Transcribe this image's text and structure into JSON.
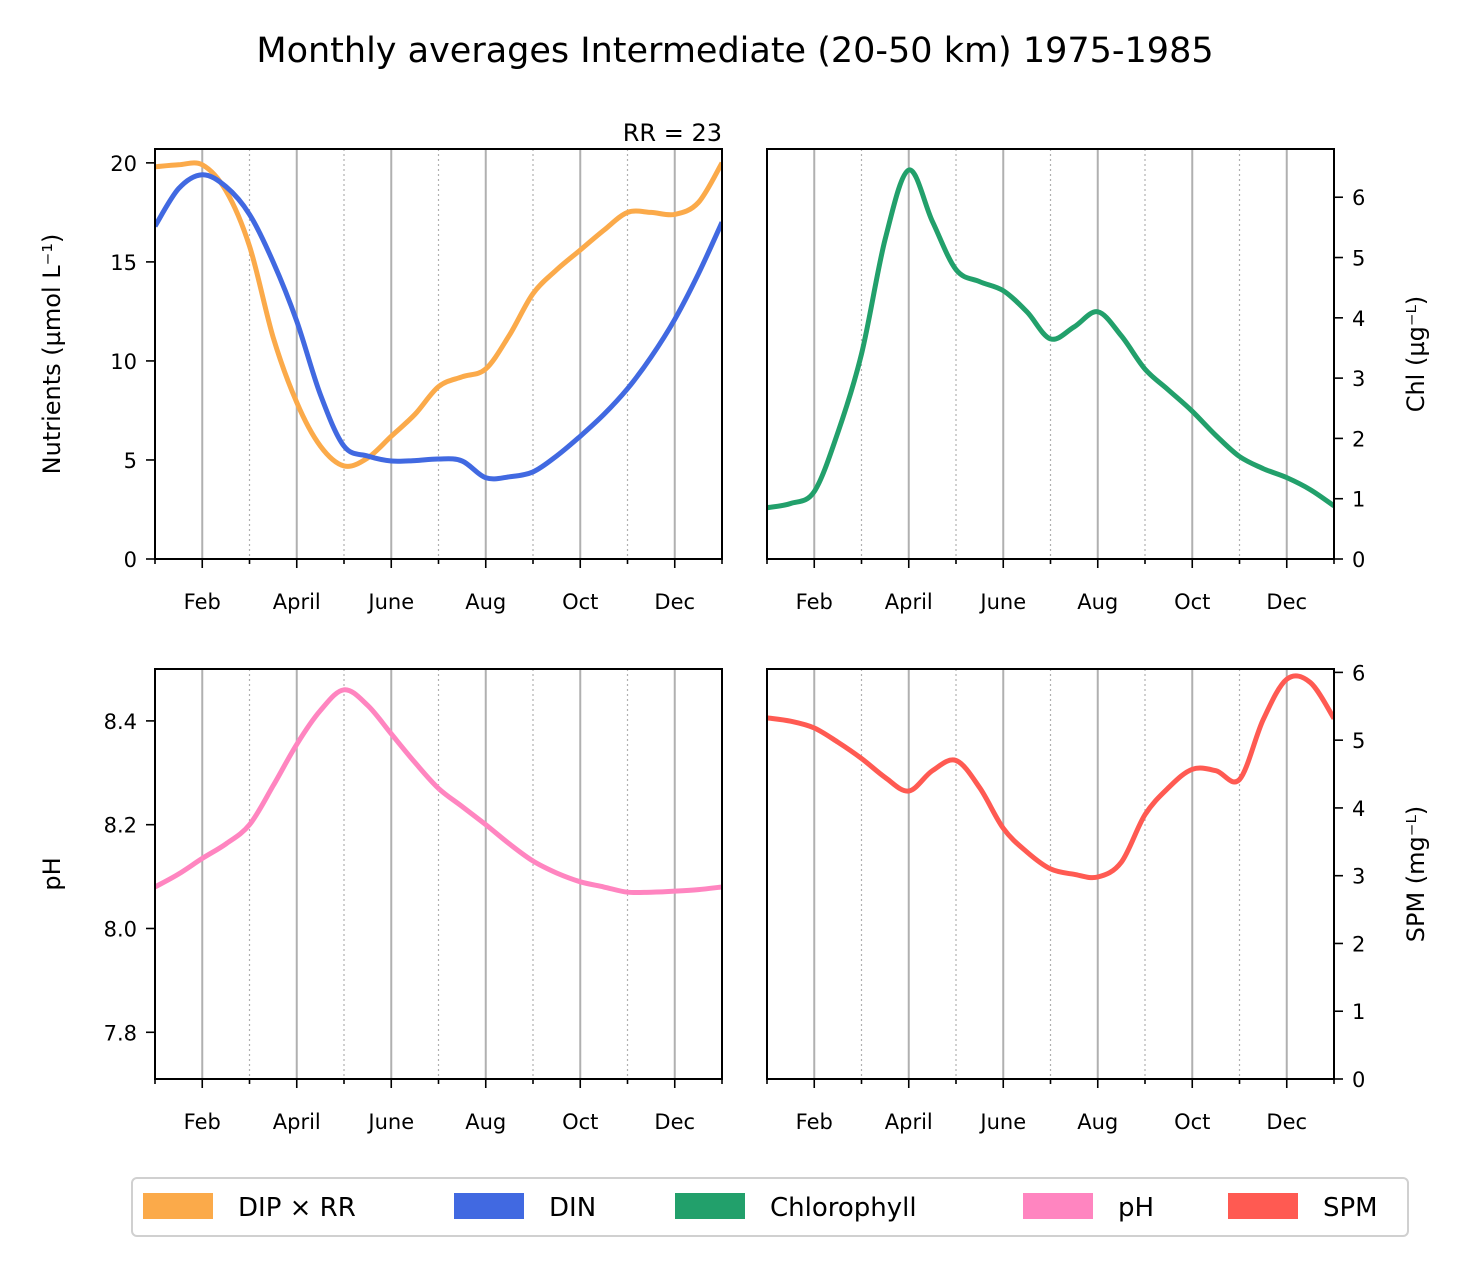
{
  "title": "Monthly averages Intermediate (20-50 km) 1975-1985",
  "colors": {
    "dip": "#FBAA4A",
    "din": "#4169E1",
    "chl": "#22A06B",
    "ph": "#FF85C0",
    "spm": "#FF5A52",
    "grid_major": "#b0b0b0",
    "grid_minor": "#b0b0b0"
  },
  "month_ticks": [
    {
      "label": "Feb",
      "x": 2
    },
    {
      "label": "April",
      "x": 4
    },
    {
      "label": "June",
      "x": 6
    },
    {
      "label": "Aug",
      "x": 8
    },
    {
      "label": "Oct",
      "x": 10
    },
    {
      "label": "Dec",
      "x": 12
    }
  ],
  "chart_data": [
    {
      "type": "line",
      "id": "nutrients",
      "annotation": "RR = 23",
      "ylabel": "Nutrients (µmol L⁻¹)",
      "xlim": [
        1,
        13
      ],
      "ylim": [
        0,
        20.7
      ],
      "yticks": [
        0,
        5,
        10,
        15,
        20
      ],
      "y_axis_side": "left",
      "series": [
        {
          "name": "DIP × RR",
          "color_key": "dip",
          "points": [
            [
              1,
              19.8
            ],
            [
              1.5,
              19.9
            ],
            [
              2,
              19.9
            ],
            [
              2.5,
              18.6
            ],
            [
              3,
              15.8
            ],
            [
              3.5,
              11.2
            ],
            [
              4,
              7.9
            ],
            [
              4.5,
              5.7
            ],
            [
              5,
              4.7
            ],
            [
              5.5,
              5.1
            ],
            [
              6,
              6.2
            ],
            [
              6.5,
              7.3
            ],
            [
              7,
              8.7
            ],
            [
              7.5,
              9.2
            ],
            [
              8,
              9.6
            ],
            [
              8.5,
              11.3
            ],
            [
              9,
              13.4
            ],
            [
              9.5,
              14.6
            ],
            [
              10,
              15.6
            ],
            [
              10.5,
              16.6
            ],
            [
              11,
              17.5
            ],
            [
              11.5,
              17.5
            ],
            [
              12,
              17.4
            ],
            [
              12.5,
              18.0
            ],
            [
              13,
              20.0
            ]
          ]
        },
        {
          "name": "DIN",
          "color_key": "din",
          "points": [
            [
              1,
              16.8
            ],
            [
              1.5,
              18.7
            ],
            [
              2,
              19.4
            ],
            [
              2.5,
              18.8
            ],
            [
              3,
              17.4
            ],
            [
              3.5,
              15.0
            ],
            [
              4,
              12.0
            ],
            [
              4.5,
              8.3
            ],
            [
              5,
              5.7
            ],
            [
              5.5,
              5.2
            ],
            [
              6,
              4.95
            ],
            [
              6.5,
              4.97
            ],
            [
              7,
              5.05
            ],
            [
              7.5,
              4.95
            ],
            [
              8,
              4.1
            ],
            [
              8.5,
              4.15
            ],
            [
              9,
              4.4
            ],
            [
              9.5,
              5.2
            ],
            [
              10,
              6.2
            ],
            [
              10.5,
              7.3
            ],
            [
              11,
              8.6
            ],
            [
              11.5,
              10.2
            ],
            [
              12,
              12.1
            ],
            [
              12.5,
              14.4
            ],
            [
              13,
              17.0
            ]
          ]
        }
      ]
    },
    {
      "type": "line",
      "id": "chlorophyll",
      "ylabel": "Chl (µg⁻ᴸ)",
      "xlim": [
        1,
        13
      ],
      "ylim": [
        0,
        6.8
      ],
      "yticks": [
        0,
        1,
        2,
        3,
        4,
        5,
        6
      ],
      "y_axis_side": "right",
      "series": [
        {
          "name": "Chlorophyll",
          "color_key": "chl",
          "points": [
            [
              1,
              0.85
            ],
            [
              1.5,
              0.92
            ],
            [
              2,
              1.12
            ],
            [
              2.5,
              2.1
            ],
            [
              3,
              3.4
            ],
            [
              3.5,
              5.3
            ],
            [
              4,
              6.45
            ],
            [
              4.5,
              5.6
            ],
            [
              5,
              4.8
            ],
            [
              5.5,
              4.6
            ],
            [
              6,
              4.45
            ],
            [
              6.5,
              4.1
            ],
            [
              7,
              3.65
            ],
            [
              7.5,
              3.85
            ],
            [
              8,
              4.1
            ],
            [
              8.5,
              3.7
            ],
            [
              9,
              3.15
            ],
            [
              9.5,
              2.8
            ],
            [
              10,
              2.45
            ],
            [
              10.5,
              2.05
            ],
            [
              11,
              1.7
            ],
            [
              11.5,
              1.5
            ],
            [
              12,
              1.35
            ],
            [
              12.5,
              1.15
            ],
            [
              13,
              0.88
            ]
          ]
        }
      ]
    },
    {
      "type": "line",
      "id": "ph",
      "ylabel": "pH",
      "xlim": [
        1,
        13
      ],
      "ylim": [
        7.71,
        8.5
      ],
      "yticks": [
        7.8,
        8.0,
        8.2,
        8.4
      ],
      "y_axis_side": "left",
      "series": [
        {
          "name": "pH",
          "color_key": "ph",
          "points": [
            [
              1,
              8.08
            ],
            [
              1.5,
              8.105
            ],
            [
              2,
              8.135
            ],
            [
              2.5,
              8.163
            ],
            [
              3,
              8.2
            ],
            [
              3.5,
              8.275
            ],
            [
              4,
              8.355
            ],
            [
              4.5,
              8.42
            ],
            [
              5,
              8.46
            ],
            [
              5.5,
              8.43
            ],
            [
              6,
              8.375
            ],
            [
              6.5,
              8.32
            ],
            [
              7,
              8.27
            ],
            [
              7.5,
              8.235
            ],
            [
              8,
              8.2
            ],
            [
              8.5,
              8.163
            ],
            [
              9,
              8.13
            ],
            [
              9.5,
              8.107
            ],
            [
              10,
              8.09
            ],
            [
              10.5,
              8.08
            ],
            [
              11,
              8.07
            ],
            [
              11.5,
              8.07
            ],
            [
              12,
              8.072
            ],
            [
              12.5,
              8.075
            ],
            [
              13,
              8.08
            ]
          ]
        }
      ]
    },
    {
      "type": "line",
      "id": "spm",
      "ylabel": "SPM (mg⁻ᴸ)",
      "xlim": [
        1,
        13
      ],
      "ylim": [
        0,
        6.05
      ],
      "yticks": [
        0,
        1,
        2,
        3,
        4,
        5,
        6
      ],
      "y_axis_side": "right",
      "series": [
        {
          "name": "SPM",
          "color_key": "spm",
          "points": [
            [
              1,
              5.33
            ],
            [
              1.5,
              5.28
            ],
            [
              2,
              5.18
            ],
            [
              2.5,
              4.97
            ],
            [
              3,
              4.73
            ],
            [
              3.5,
              4.45
            ],
            [
              4,
              4.25
            ],
            [
              4.5,
              4.55
            ],
            [
              5,
              4.7
            ],
            [
              5.5,
              4.3
            ],
            [
              6,
              3.7
            ],
            [
              6.5,
              3.35
            ],
            [
              7,
              3.1
            ],
            [
              7.5,
              3.02
            ],
            [
              8,
              2.98
            ],
            [
              8.5,
              3.2
            ],
            [
              9,
              3.9
            ],
            [
              9.5,
              4.3
            ],
            [
              10,
              4.57
            ],
            [
              10.5,
              4.55
            ],
            [
              11,
              4.42
            ],
            [
              11.5,
              5.3
            ],
            [
              12,
              5.9
            ],
            [
              12.5,
              5.85
            ],
            [
              13,
              5.32
            ]
          ]
        }
      ]
    }
  ],
  "legend": [
    {
      "label": "DIP × RR",
      "color_key": "dip"
    },
    {
      "label": "DIN",
      "color_key": "din"
    },
    {
      "label": "Chlorophyll",
      "color_key": "chl"
    },
    {
      "label": "pH",
      "color_key": "ph"
    },
    {
      "label": "SPM",
      "color_key": "spm"
    }
  ]
}
